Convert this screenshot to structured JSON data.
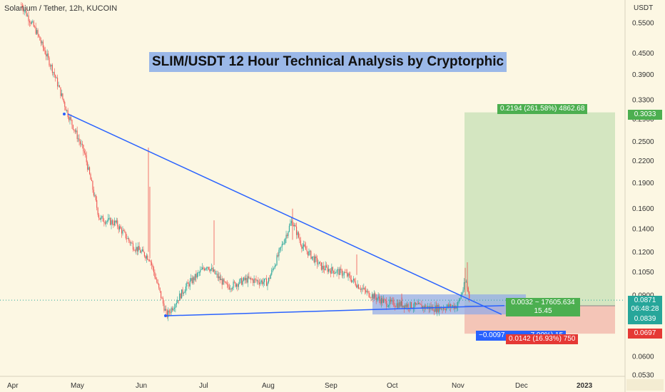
{
  "pair_title": "Solanium / Tether, 12h, KUCOIN",
  "chart_title": "SLIM/USDT 12 Hour Technical Analysis by Cryptorphic",
  "chart_data": {
    "type": "candlestick",
    "title": "SLIM/USDT 12 Hour Technical Analysis by Cryptorphic",
    "subtitle": "Solanium / Tether, 12h, KUCOIN",
    "y_axis_unit": "USDT",
    "y_scale": "log",
    "ylim": [
      0.0525,
      0.64
    ],
    "y_ticks": [
      0.55,
      0.45,
      0.39,
      0.33,
      0.29,
      0.25,
      0.22,
      0.19,
      0.16,
      0.14,
      0.12,
      0.105,
      0.09,
      0.078,
      0.069,
      0.06,
      0.053
    ],
    "x_ticks": [
      "Apr",
      "May",
      "Jun",
      "Jul",
      "Aug",
      "Sep",
      "Oct",
      "Nov",
      "Dec",
      "2023"
    ],
    "price_path": [
      {
        "x": "Apr 5",
        "y": 0.62
      },
      {
        "x": "Apr 12",
        "y": 0.52
      },
      {
        "x": "Apr 20",
        "y": 0.4
      },
      {
        "x": "Apr 27",
        "y": 0.3
      },
      {
        "x": "May 5",
        "y": 0.23
      },
      {
        "x": "May 12",
        "y": 0.15
      },
      {
        "x": "May 20",
        "y": 0.145
      },
      {
        "x": "May 28",
        "y": 0.125
      },
      {
        "x": "Jun 5",
        "y": 0.115
      },
      {
        "x": "Jun 13",
        "y": 0.0785
      },
      {
        "x": "Jun 22",
        "y": 0.095
      },
      {
        "x": "Jul 2",
        "y": 0.11
      },
      {
        "x": "Jul 12",
        "y": 0.095
      },
      {
        "x": "Jul 22",
        "y": 0.1
      },
      {
        "x": "Aug 1",
        "y": 0.098
      },
      {
        "x": "Aug 13",
        "y": 0.148
      },
      {
        "x": "Aug 18",
        "y": 0.125
      },
      {
        "x": "Aug 28",
        "y": 0.108
      },
      {
        "x": "Sep 8",
        "y": 0.104
      },
      {
        "x": "Sep 18",
        "y": 0.092
      },
      {
        "x": "Sep 28",
        "y": 0.0855
      },
      {
        "x": "Oct 10",
        "y": 0.084
      },
      {
        "x": "Oct 22",
        "y": 0.0825
      },
      {
        "x": "Nov 1",
        "y": 0.084
      },
      {
        "x": "Nov 5",
        "y": 0.099
      },
      {
        "x": "Nov 7",
        "y": 0.0871
      }
    ],
    "descending_trendline": [
      {
        "x": "Apr 27",
        "y": 0.3
      },
      {
        "x": "Nov 5",
        "y": 0.0871
      }
    ],
    "support_line": [
      {
        "x": "Jun 13",
        "y": 0.0785
      },
      {
        "x": "Nov 8",
        "y": 0.084
      }
    ],
    "current_price": 0.0871,
    "countdown": "06:48:28",
    "entry_price": 0.0839,
    "target_price": 0.3033,
    "stop_price": 0.0697,
    "target_label": "0.2194 (261.58%) 4862.68",
    "position_info": "0.0032 ~ 17605.634",
    "position_info2": "15.45",
    "stop_label": "0.0142 (16.93%) 750",
    "blue_label": "−0.0097",
    "blue_label_tail": "7.00%) 15",
    "colors": {
      "background": "#fcf7e3",
      "up": "#26a69a",
      "down": "#ef5350",
      "trendline": "#2962ff",
      "target_zone": "#cfe3bd",
      "stop_zone": "#f3bfb1",
      "accumulation_box": "#8fa8e8",
      "target_tag": "#4caf50",
      "stop_tag": "#e53935",
      "price_tag": "#26a69a",
      "blue_tag": "#2962ff"
    }
  }
}
